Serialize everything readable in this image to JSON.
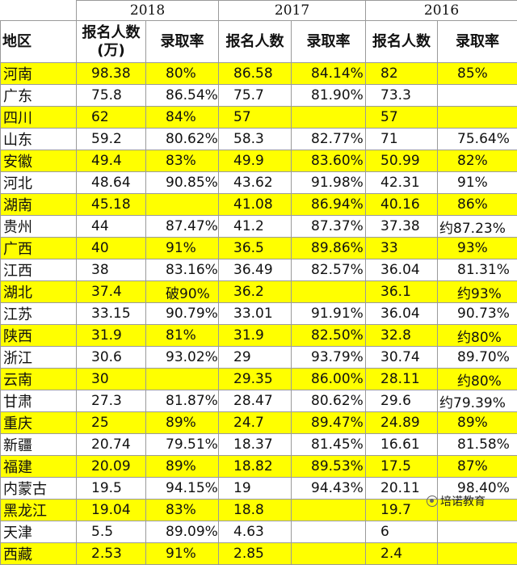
{
  "years": [
    "2018",
    "2017",
    "2016"
  ],
  "headers": {
    "region": "地区",
    "applicants_2018": "报名人数\n(万)",
    "applicants": "报名人数",
    "rate": "录取率"
  },
  "rows": [
    {
      "region": "河南",
      "a2018": "98.38",
      "r2018": "80%",
      "a2017": "86.58",
      "r2017": "84.14%",
      "a2016": "82",
      "r2016": "85%",
      "highlight": true
    },
    {
      "region": "广东",
      "a2018": "75.8",
      "r2018": "86.54%",
      "a2017": "75.7",
      "r2017": "81.90%",
      "a2016": "73.3",
      "r2016": "",
      "highlight": false
    },
    {
      "region": "四川",
      "a2018": "62",
      "r2018": "84%",
      "a2017": "57",
      "r2017": "",
      "a2016": "57",
      "r2016": "",
      "highlight": true
    },
    {
      "region": "山东",
      "a2018": "59.2",
      "r2018": "80.62%",
      "a2017": "58.3",
      "r2017": "82.77%",
      "a2016": "71",
      "r2016": "75.64%",
      "highlight": false
    },
    {
      "region": "安徽",
      "a2018": "49.4",
      "r2018": "83%",
      "a2017": "49.9",
      "r2017": "83.60%",
      "a2016": "50.99",
      "r2016": "82%",
      "highlight": true
    },
    {
      "region": "河北",
      "a2018": "48.64",
      "r2018": "90.85%",
      "a2017": "43.62",
      "r2017": "91.98%",
      "a2016": "42.31",
      "r2016": "91%",
      "highlight": false
    },
    {
      "region": "湖南",
      "a2018": "45.18",
      "r2018": "",
      "a2017": "41.08",
      "r2017": "86.94%",
      "a2016": "40.16",
      "r2016": "86%",
      "highlight": true
    },
    {
      "region": "贵州",
      "a2018": "44",
      "r2018": "87.47%",
      "a2017": "41.2",
      "r2017": "87.37%",
      "a2016": "37.38",
      "r2016": "约87.23%",
      "highlight": false
    },
    {
      "region": "广西",
      "a2018": "40",
      "r2018": "91%",
      "a2017": "36.5",
      "r2017": "89.86%",
      "a2016": "33",
      "r2016": "93%",
      "highlight": true
    },
    {
      "region": "江西",
      "a2018": "38",
      "r2018": "83.16%",
      "a2017": "36.49",
      "r2017": "82.57%",
      "a2016": "36.04",
      "r2016": "81.31%",
      "highlight": false
    },
    {
      "region": "湖北",
      "a2018": "37.4",
      "r2018": "破90%",
      "a2017": "36.2",
      "r2017": "",
      "a2016": "36.1",
      "r2016": "约93%",
      "highlight": true
    },
    {
      "region": "江苏",
      "a2018": "33.15",
      "r2018": "90.79%",
      "a2017": "33.01",
      "r2017": "91.91%",
      "a2016": "36.04",
      "r2016": "90.73%",
      "highlight": false
    },
    {
      "region": "陕西",
      "a2018": "31.9",
      "r2018": "81%",
      "a2017": "31.9",
      "r2017": "82.50%",
      "a2016": "32.8",
      "r2016": "约80%",
      "highlight": true
    },
    {
      "region": "浙江",
      "a2018": "30.6",
      "r2018": "93.02%",
      "a2017": "29",
      "r2017": "93.79%",
      "a2016": "30.74",
      "r2016": "89.70%",
      "highlight": false
    },
    {
      "region": "云南",
      "a2018": "30",
      "r2018": "",
      "a2017": "29.35",
      "r2017": "86.00%",
      "a2016": "28.11",
      "r2016": "约80%",
      "highlight": true
    },
    {
      "region": "甘肃",
      "a2018": "27.3",
      "r2018": "81.87%",
      "a2017": "28.47",
      "r2017": "80.62%",
      "a2016": "29.6",
      "r2016": "约79.39%",
      "highlight": false
    },
    {
      "region": "重庆",
      "a2018": "25",
      "r2018": "89%",
      "a2017": "24.7",
      "r2017": "89.47%",
      "a2016": "24.89",
      "r2016": "89%",
      "highlight": true
    },
    {
      "region": "新疆",
      "a2018": "20.74",
      "r2018": "79.51%",
      "a2017": "18.37",
      "r2017": "81.45%",
      "a2016": "16.61",
      "r2016": "81.58%",
      "highlight": false
    },
    {
      "region": "福建",
      "a2018": "20.09",
      "r2018": "89%",
      "a2017": "18.82",
      "r2017": "89.53%",
      "a2016": "17.5",
      "r2016": "87%",
      "highlight": true
    },
    {
      "region": "内蒙古",
      "a2018": "19.5",
      "r2018": "94.15%",
      "a2017": "19",
      "r2017": "94.43%",
      "a2016": "20.11",
      "r2016": "98.40%",
      "highlight": false
    },
    {
      "region": "黑龙江",
      "a2018": "19.04",
      "r2018": "83%",
      "a2017": "18.8",
      "r2017": "",
      "a2016": "19.7",
      "r2016": "",
      "highlight": true
    },
    {
      "region": "天津",
      "a2018": "5.5",
      "r2018": "89.09%",
      "a2017": "4.63",
      "r2017": "",
      "a2016": "6",
      "r2016": "",
      "highlight": false
    },
    {
      "region": "西藏",
      "a2018": "2.53",
      "r2018": "91%",
      "a2017": "2.85",
      "r2017": "",
      "a2016": "2.4",
      "r2016": "",
      "highlight": true
    }
  ],
  "watermark": {
    "text": "培诺教育",
    "icon": "chat-bubble-icon"
  },
  "colors": {
    "highlight": "#ffff00",
    "border": "#9a9a9a"
  }
}
